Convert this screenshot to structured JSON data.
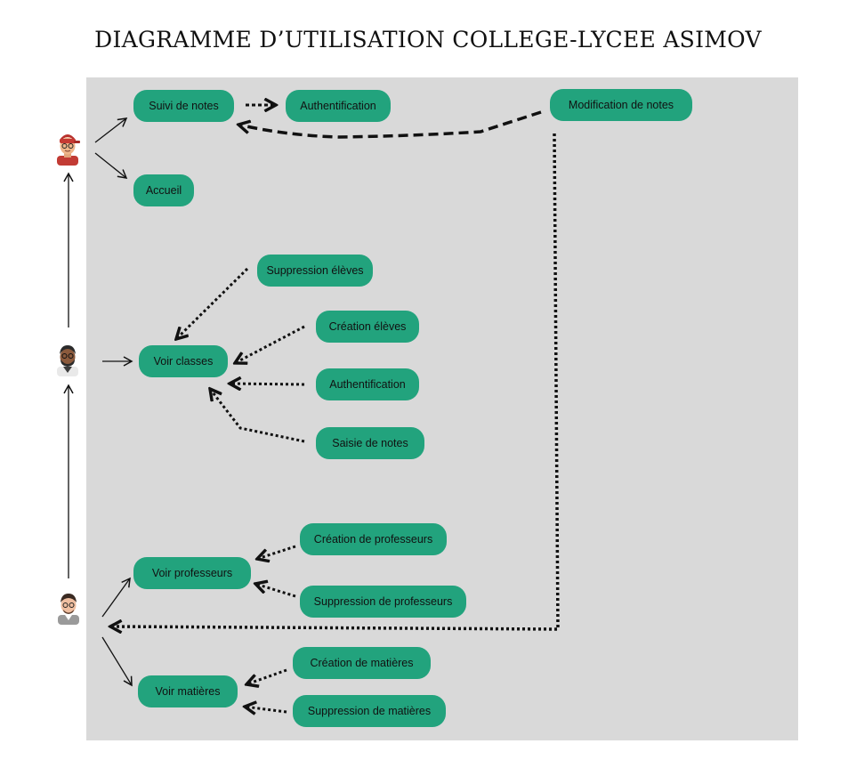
{
  "diagram": {
    "title": "DIAGRAMME D’UTILISATION COLLEGE-LYCEE ASIMOV",
    "colors": {
      "node": "#22a37d",
      "board": "#d9d9d9",
      "line": "#111111"
    },
    "actors": [
      {
        "id": "eleve",
        "icon": "student-avatar-icon"
      },
      {
        "id": "professeur",
        "icon": "teacher-avatar-icon"
      },
      {
        "id": "administrateur",
        "icon": "admin-avatar-icon"
      }
    ],
    "use_cases": {
      "suivi_notes": "Suivi de notes",
      "auth_top": "Authentification",
      "modif_notes": "Modification de notes",
      "accueil": "Accueil",
      "suppr_eleves": "Suppression élèves",
      "creation_eleves": "Création élèves",
      "voir_classes": "Voir classes",
      "auth_mid": "Authentification",
      "saisie_notes": "Saisie de notes",
      "creation_profs": "Création de professeurs",
      "voir_profs": "Voir professeurs",
      "suppr_profs": "Suppression de professeurs",
      "creation_matieres": "Création de matières",
      "voir_matieres": "Voir matières",
      "suppr_matieres": "Suppression de matières"
    },
    "relations": [
      {
        "from": "eleve",
        "to": "suivi_notes",
        "style": "solid"
      },
      {
        "from": "eleve",
        "to": "accueil",
        "style": "solid"
      },
      {
        "from": "suivi_notes",
        "to": "auth_top",
        "style": "dotted"
      },
      {
        "from": "modif_notes",
        "to": "suivi_notes",
        "style": "dashed"
      },
      {
        "from": "modif_notes",
        "to": "administrateur",
        "style": "dotted"
      },
      {
        "from": "professeur",
        "to": "eleve",
        "style": "solid"
      },
      {
        "from": "professeur",
        "to": "voir_classes",
        "style": "solid"
      },
      {
        "from": "suppr_eleves",
        "to": "voir_classes",
        "style": "dotted"
      },
      {
        "from": "creation_eleves",
        "to": "voir_classes",
        "style": "dotted"
      },
      {
        "from": "auth_mid",
        "to": "voir_classes",
        "style": "dotted"
      },
      {
        "from": "saisie_notes",
        "to": "voir_classes",
        "style": "dotted"
      },
      {
        "from": "administrateur",
        "to": "professeur",
        "style": "solid"
      },
      {
        "from": "administrateur",
        "to": "voir_profs",
        "style": "solid"
      },
      {
        "from": "administrateur",
        "to": "voir_matieres",
        "style": "solid"
      },
      {
        "from": "creation_profs",
        "to": "voir_profs",
        "style": "dotted"
      },
      {
        "from": "suppr_profs",
        "to": "voir_profs",
        "style": "dotted"
      },
      {
        "from": "creation_matieres",
        "to": "voir_matieres",
        "style": "dotted"
      },
      {
        "from": "suppr_matieres",
        "to": "voir_matieres",
        "style": "dotted"
      }
    ]
  }
}
